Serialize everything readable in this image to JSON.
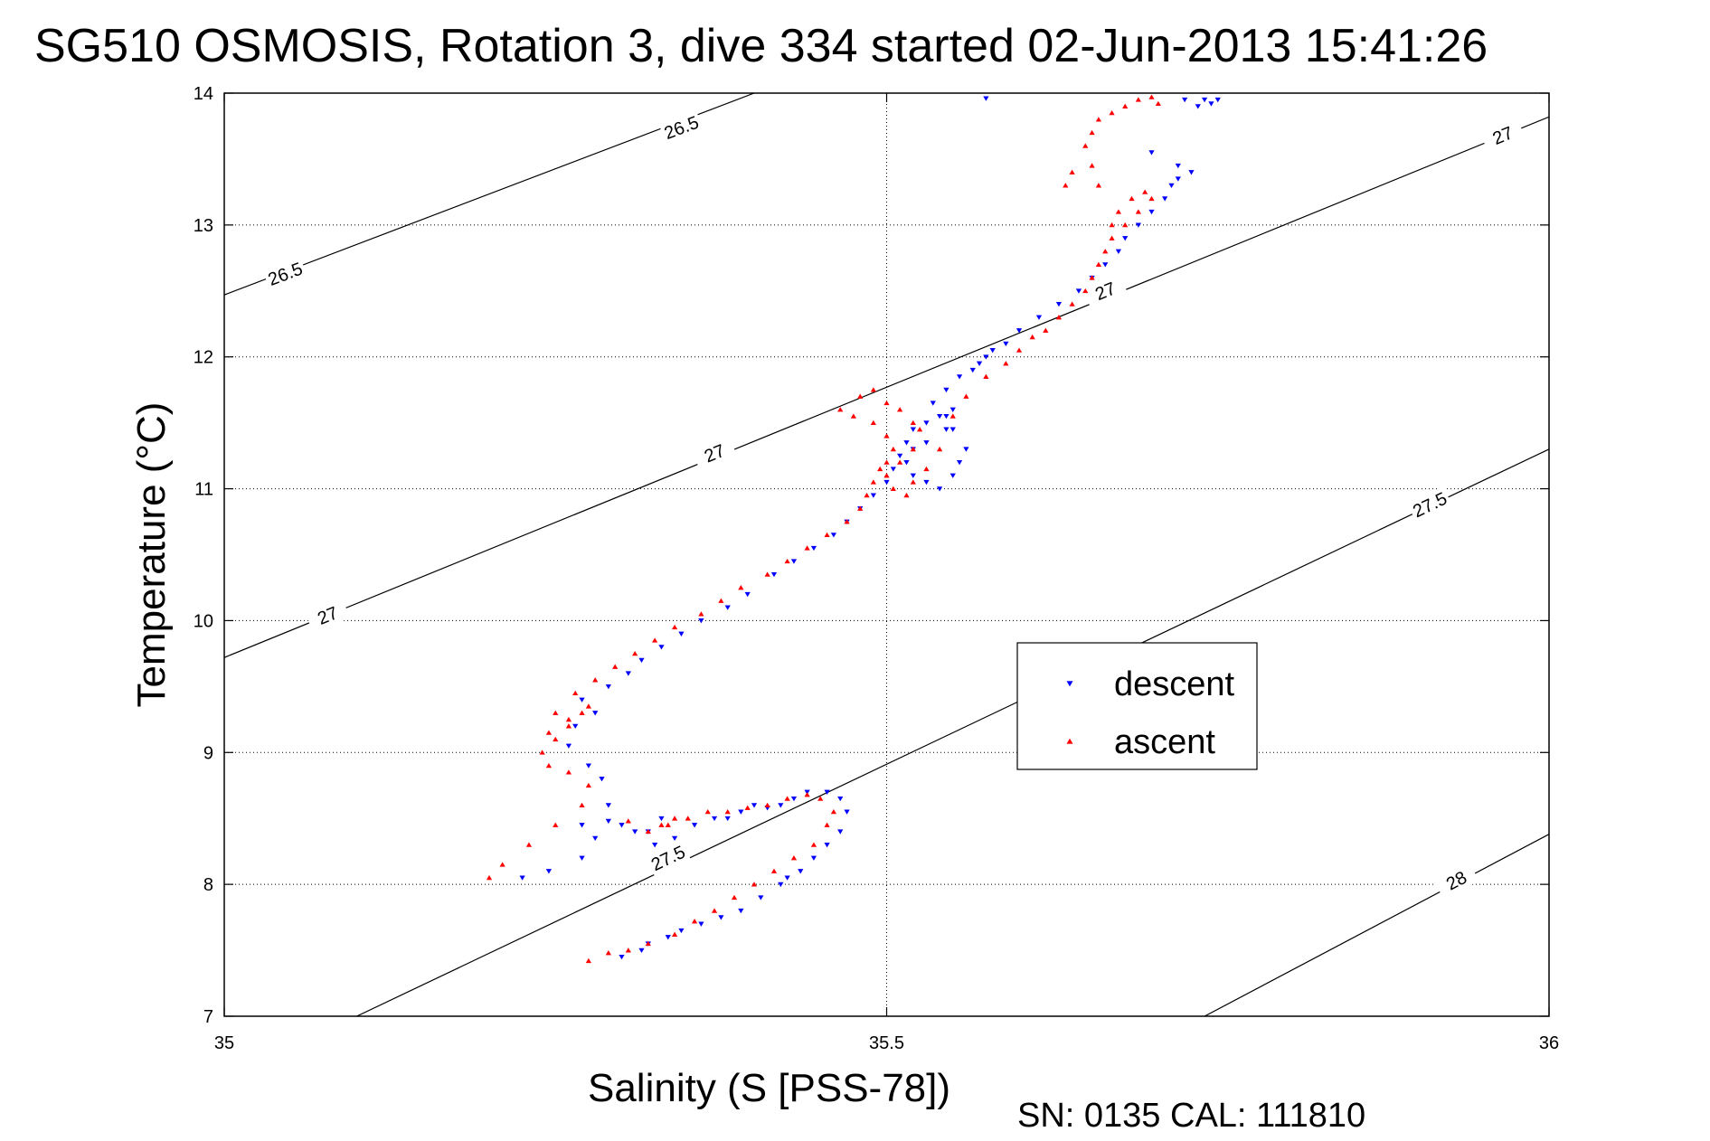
{
  "title": "SG510 OSMOSIS, Rotation 3, dive 334 started 02-Jun-2013 15:41:26",
  "footer": "SN: 0135  CAL: 111810",
  "chart_data": {
    "type": "scatter",
    "title": "SG510 OSMOSIS, Rotation 3, dive 334 started 02-Jun-2013 15:41:26",
    "xlabel": "Salinity (S [PSS-78])",
    "ylabel": "Temperature (°C)",
    "xlim": [
      35,
      36
    ],
    "ylim": [
      7,
      14
    ],
    "xticks": [
      35,
      35.5,
      36
    ],
    "xtick_labels": [
      "35",
      "35.5",
      "36"
    ],
    "yticks": [
      7,
      8,
      9,
      10,
      11,
      12,
      13,
      14
    ],
    "ytick_labels": [
      "7",
      "8",
      "9",
      "10",
      "11",
      "12",
      "13",
      "14"
    ],
    "grid": true,
    "legend_position": "center-right",
    "contours": [
      {
        "label": "26.5",
        "points": [
          [
            35,
            12.47
          ],
          [
            35.4,
            14
          ]
        ],
        "label_positions": [
          [
            35.046,
            12.63
          ],
          [
            35.345,
            13.74
          ]
        ]
      },
      {
        "label": "27",
        "points": [
          [
            35,
            9.72
          ],
          [
            36,
            13.82
          ]
        ],
        "label_positions": [
          [
            35.078,
            10.04
          ],
          [
            35.37,
            11.27
          ],
          [
            35.665,
            12.5
          ],
          [
            35.965,
            13.68
          ]
        ]
      },
      {
        "label": "27.5",
        "points": [
          [
            35.1,
            7
          ],
          [
            36,
            11.3
          ]
        ],
        "label_positions": [
          [
            35.335,
            8.2
          ],
          [
            35.91,
            10.88
          ]
        ]
      },
      {
        "label": "28",
        "points": [
          [
            35.74,
            7
          ],
          [
            36,
            8.38
          ]
        ],
        "label_positions": [
          [
            35.93,
            8.03
          ]
        ]
      }
    ],
    "series": [
      {
        "name": "descent",
        "color": "#0000ff",
        "marker": "triangle-down",
        "x": [
          35.3,
          35.315,
          35.32,
          35.335,
          35.345,
          35.36,
          35.375,
          35.39,
          35.405,
          35.42,
          35.425,
          35.435,
          35.445,
          35.455,
          35.465,
          35.47,
          35.465,
          35.455,
          35.44,
          35.43,
          35.42,
          35.41,
          35.4,
          35.39,
          35.38,
          35.37,
          35.355,
          35.34,
          35.325,
          35.31,
          35.3,
          35.29,
          35.33,
          35.32,
          35.225,
          35.245,
          35.27,
          35.28,
          35.27,
          35.29,
          35.285,
          35.275,
          35.26,
          35.265,
          35.28,
          35.27,
          35.29,
          35.305,
          35.315,
          35.33,
          35.345,
          35.36,
          35.38,
          35.395,
          35.415,
          35.43,
          35.445,
          35.46,
          35.47,
          35.48,
          35.49,
          35.5,
          35.505,
          35.51,
          35.515,
          35.52,
          35.53,
          35.54,
          35.55,
          35.545,
          35.53,
          35.52,
          35.515,
          35.52,
          35.53,
          35.54,
          35.55,
          35.555,
          35.56,
          35.55,
          35.545,
          35.535,
          35.545,
          35.555,
          35.565,
          35.57,
          35.575,
          35.58,
          35.59,
          35.6,
          35.615,
          35.63,
          35.645,
          35.655,
          35.665,
          35.675,
          35.68,
          35.69,
          35.7,
          35.71,
          35.715,
          35.72,
          35.73,
          35.72,
          35.7,
          35.725,
          35.735,
          35.74,
          35.745,
          35.75,
          35.575
        ],
        "y": [
          7.45,
          7.5,
          7.55,
          7.6,
          7.65,
          7.7,
          7.75,
          7.8,
          7.9,
          8.0,
          8.05,
          8.1,
          8.2,
          8.3,
          8.4,
          8.55,
          8.65,
          8.7,
          8.7,
          8.65,
          8.6,
          8.58,
          8.6,
          8.55,
          8.5,
          8.5,
          8.45,
          8.35,
          8.3,
          8.4,
          8.45,
          8.48,
          8.5,
          8.4,
          8.05,
          8.1,
          8.2,
          8.35,
          8.45,
          8.6,
          8.8,
          8.9,
          9.05,
          9.2,
          9.3,
          9.4,
          9.5,
          9.6,
          9.7,
          9.8,
          9.9,
          10.0,
          10.1,
          10.2,
          10.35,
          10.45,
          10.55,
          10.65,
          10.75,
          10.85,
          10.95,
          11.05,
          11.15,
          11.25,
          11.35,
          11.45,
          11.5,
          11.55,
          11.6,
          11.45,
          11.35,
          11.3,
          11.2,
          11.1,
          11.05,
          11.0,
          11.1,
          11.2,
          11.3,
          11.45,
          11.55,
          11.65,
          11.75,
          11.85,
          11.9,
          11.95,
          12.0,
          12.05,
          12.1,
          12.2,
          12.3,
          12.4,
          12.5,
          12.6,
          12.7,
          12.8,
          12.9,
          13.0,
          13.1,
          13.2,
          13.3,
          13.35,
          13.4,
          13.45,
          13.55,
          13.95,
          13.9,
          13.95,
          13.92,
          13.95,
          13.96
        ]
      },
      {
        "name": "ascent",
        "color": "#ff0000",
        "marker": "triangle-up",
        "x": [
          35.275,
          35.29,
          35.305,
          35.32,
          35.34,
          35.355,
          35.37,
          35.385,
          35.4,
          35.415,
          35.43,
          35.445,
          35.455,
          35.46,
          35.45,
          35.44,
          35.425,
          35.41,
          35.395,
          35.38,
          35.365,
          35.35,
          35.335,
          35.32,
          35.33,
          35.34,
          35.305,
          35.2,
          35.21,
          35.23,
          35.25,
          35.27,
          35.275,
          35.26,
          35.245,
          35.24,
          35.25,
          35.26,
          35.27,
          35.275,
          35.26,
          35.245,
          35.25,
          35.265,
          35.28,
          35.295,
          35.31,
          35.325,
          35.34,
          35.36,
          35.375,
          35.39,
          35.41,
          35.425,
          35.44,
          35.455,
          35.47,
          35.48,
          35.485,
          35.49,
          35.495,
          35.5,
          35.505,
          35.5,
          35.49,
          35.475,
          35.465,
          35.48,
          35.49,
          35.5,
          35.51,
          35.52,
          35.525,
          35.52,
          35.51,
          35.5,
          35.505,
          35.515,
          35.52,
          35.53,
          35.54,
          35.55,
          35.56,
          35.575,
          35.59,
          35.6,
          35.61,
          35.62,
          35.63,
          35.64,
          35.65,
          35.655,
          35.66,
          35.665,
          35.67,
          35.68,
          35.69,
          35.7,
          35.695,
          35.685,
          35.675,
          35.67,
          35.66,
          35.655,
          35.65,
          35.655,
          35.66,
          35.67,
          35.68,
          35.69,
          35.7,
          35.705,
          35.64,
          35.635
        ],
        "y": [
          7.42,
          7.48,
          7.5,
          7.55,
          7.62,
          7.72,
          7.8,
          7.9,
          8.0,
          8.1,
          8.2,
          8.3,
          8.45,
          8.55,
          8.65,
          8.68,
          8.65,
          8.6,
          8.58,
          8.55,
          8.55,
          8.5,
          8.45,
          8.4,
          8.45,
          8.5,
          8.48,
          8.05,
          8.15,
          8.3,
          8.45,
          8.6,
          8.75,
          8.85,
          8.9,
          9.0,
          9.1,
          9.2,
          9.3,
          9.35,
          9.25,
          9.15,
          9.3,
          9.45,
          9.55,
          9.65,
          9.75,
          9.85,
          9.95,
          10.05,
          10.15,
          10.25,
          10.35,
          10.45,
          10.55,
          10.65,
          10.75,
          10.85,
          10.95,
          11.05,
          11.15,
          11.2,
          11.3,
          11.4,
          11.5,
          11.55,
          11.6,
          11.7,
          11.75,
          11.65,
          11.6,
          11.5,
          11.45,
          11.3,
          11.2,
          11.1,
          11.0,
          10.95,
          11.05,
          11.15,
          11.3,
          11.55,
          11.7,
          11.85,
          11.95,
          12.05,
          12.15,
          12.2,
          12.3,
          12.4,
          12.5,
          12.6,
          12.7,
          12.8,
          12.9,
          13.0,
          13.1,
          13.2,
          13.25,
          13.2,
          13.1,
          13.0,
          13.3,
          13.45,
          13.6,
          13.7,
          13.8,
          13.85,
          13.9,
          13.95,
          13.97,
          13.92,
          13.4,
          13.3
        ]
      }
    ]
  }
}
